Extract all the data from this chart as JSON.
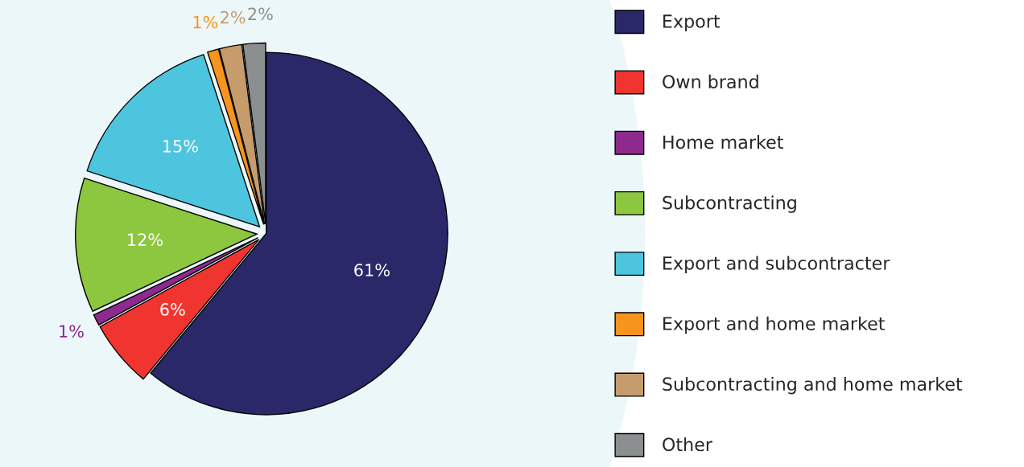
{
  "chart_data": {
    "type": "pie",
    "categories": [
      "Export",
      "Own brand",
      "Home market",
      "Subcontracting",
      "Export and subcontracter",
      "Export and home market",
      "Subcontracting and home market",
      "Other"
    ],
    "values": [
      61,
      6,
      1,
      12,
      15,
      1,
      2,
      2
    ],
    "value_labels": [
      "61%",
      "6%",
      "1%",
      "12%",
      "15%",
      "1%",
      "2%",
      "2%"
    ],
    "colors": [
      "#2b2869",
      "#f0342f",
      "#8e2a8e",
      "#8dc63f",
      "#4ec5df",
      "#f7941d",
      "#c69c6d",
      "#8c8f8f"
    ],
    "legend": "right"
  }
}
